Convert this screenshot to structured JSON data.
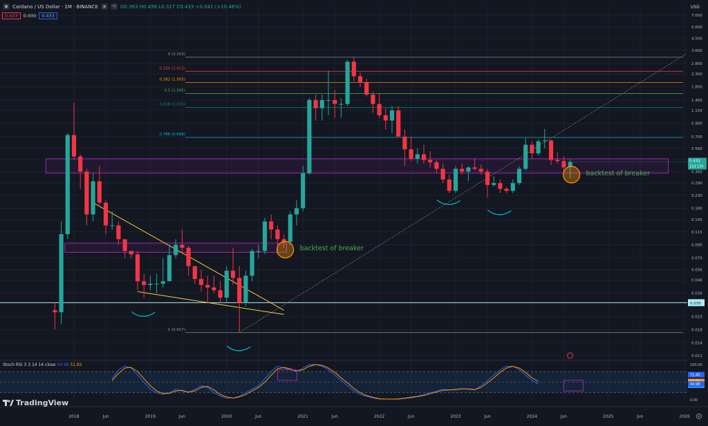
{
  "header": {
    "symbol": "Cardano / US Dollar · 1M · BINANCE",
    "ohlc": "O0.393 H0.456 L0.317 C0.433 +0.041 (+10.46%)",
    "sell": "0.433",
    "spread": "0.000",
    "buy": "0.433"
  },
  "branding": {
    "logo_text": "TradingView"
  },
  "price_axis": {
    "unit": "USD",
    "ticks": [
      "7.000",
      "5.600",
      "4.500",
      "3.600",
      "2.800",
      "2.300",
      "1.800",
      "1.400",
      "1.150",
      "0.900",
      "0.700",
      "0.560",
      "0.450",
      "0.360",
      "0.290",
      "0.230",
      "0.180",
      "0.145",
      "0.115",
      "0.090",
      "0.070",
      "0.056",
      "0.046",
      "0.036",
      "0.030",
      "0.023",
      "0.018",
      "0.014",
      "0.011"
    ],
    "current_price": "0.433",
    "countdown": "11d 13h",
    "level_label": "0.030"
  },
  "time_axis": {
    "ticks": [
      "2018",
      "Jun",
      "2019",
      "Jun",
      "2020",
      "Jun",
      "2021",
      "Jun",
      "2022",
      "Jun",
      "2023",
      "Jun",
      "2024",
      "Jun",
      "2025",
      "Jun",
      "2026"
    ]
  },
  "annotations": {
    "backtest_left": "backtest of breaker",
    "backtest_right": "backtest of breaker"
  },
  "fib_levels": [
    {
      "label": "0 (3.153)",
      "color": "#9598a1"
    },
    {
      "label": "0.236 (2.413)",
      "color": "#f23645"
    },
    {
      "label": "0.382 (1.955)",
      "color": "#ff9800"
    },
    {
      "label": "0.5 (1.585)",
      "color": "#4caf50"
    },
    {
      "label": "0.618 (1.215)",
      "color": "#089981"
    },
    {
      "label": "0.786 (0.688)",
      "color": "#00bcd4"
    },
    {
      "label": "1 (0.017)",
      "color": "#9598a1"
    }
  ],
  "rsi": {
    "title": "Stoch RSI 3 3 14 14 close",
    "k_value": "44.98",
    "d_value": "51.82",
    "axis_ticks": [
      "100.00",
      "71.40",
      "51.82",
      "41.17",
      "44.98",
      "0.00"
    ]
  },
  "colors": {
    "up": "#26a69a",
    "down": "#f23645",
    "zone": "#9c27b0",
    "trend": "#f7d03c",
    "k_line": "#2962ff",
    "d_line": "#ff9800"
  },
  "chart_data": {
    "type": "candlestick",
    "timeframe": "1M",
    "y_scale": "log",
    "ylim": [
      0.011,
      7.0
    ],
    "candles": [
      {
        "t": "2017-10",
        "o": 0.026,
        "h": 0.03,
        "l": 0.018,
        "c": 0.025
      },
      {
        "t": "2017-11",
        "o": 0.025,
        "h": 0.14,
        "l": 0.02,
        "c": 0.11
      },
      {
        "t": "2017-12",
        "o": 0.11,
        "h": 0.75,
        "l": 0.1,
        "c": 0.72
      },
      {
        "t": "2018-01",
        "o": 0.72,
        "h": 1.33,
        "l": 0.45,
        "c": 0.48
      },
      {
        "t": "2018-02",
        "o": 0.48,
        "h": 0.5,
        "l": 0.26,
        "c": 0.36
      },
      {
        "t": "2018-03",
        "o": 0.36,
        "h": 0.38,
        "l": 0.13,
        "c": 0.16
      },
      {
        "t": "2018-04",
        "o": 0.16,
        "h": 0.35,
        "l": 0.14,
        "c": 0.3
      },
      {
        "t": "2018-05",
        "o": 0.3,
        "h": 0.4,
        "l": 0.19,
        "c": 0.2
      },
      {
        "t": "2018-06",
        "o": 0.2,
        "h": 0.21,
        "l": 0.11,
        "c": 0.13
      },
      {
        "t": "2018-07",
        "o": 0.13,
        "h": 0.17,
        "l": 0.12,
        "c": 0.13
      },
      {
        "t": "2018-08",
        "o": 0.13,
        "h": 0.14,
        "l": 0.09,
        "c": 0.1
      },
      {
        "t": "2018-09",
        "o": 0.1,
        "h": 0.1,
        "l": 0.07,
        "c": 0.08
      },
      {
        "t": "2018-10",
        "o": 0.08,
        "h": 0.08,
        "l": 0.07,
        "c": 0.075
      },
      {
        "t": "2018-11",
        "o": 0.075,
        "h": 0.08,
        "l": 0.038,
        "c": 0.045
      },
      {
        "t": "2018-12",
        "o": 0.045,
        "h": 0.052,
        "l": 0.033,
        "c": 0.042
      },
      {
        "t": "2019-01",
        "o": 0.042,
        "h": 0.05,
        "l": 0.038,
        "c": 0.043
      },
      {
        "t": "2019-02",
        "o": 0.043,
        "h": 0.052,
        "l": 0.036,
        "c": 0.043
      },
      {
        "t": "2019-03",
        "o": 0.043,
        "h": 0.07,
        "l": 0.04,
        "c": 0.045
      },
      {
        "t": "2019-04",
        "o": 0.045,
        "h": 0.09,
        "l": 0.056,
        "c": 0.074
      },
      {
        "t": "2019-05",
        "o": 0.074,
        "h": 0.1,
        "l": 0.07,
        "c": 0.09
      },
      {
        "t": "2019-06",
        "o": 0.09,
        "h": 0.12,
        "l": 0.075,
        "c": 0.085
      },
      {
        "t": "2019-07",
        "o": 0.085,
        "h": 0.088,
        "l": 0.05,
        "c": 0.06
      },
      {
        "t": "2019-08",
        "o": 0.06,
        "h": 0.06,
        "l": 0.043,
        "c": 0.047
      },
      {
        "t": "2019-09",
        "o": 0.047,
        "h": 0.056,
        "l": 0.037,
        "c": 0.042
      },
      {
        "t": "2019-10",
        "o": 0.042,
        "h": 0.05,
        "l": 0.03,
        "c": 0.04
      },
      {
        "t": "2019-11",
        "o": 0.04,
        "h": 0.05,
        "l": 0.036,
        "c": 0.038
      },
      {
        "t": "2019-12",
        "o": 0.038,
        "h": 0.045,
        "l": 0.03,
        "c": 0.033
      },
      {
        "t": "2020-01",
        "o": 0.033,
        "h": 0.06,
        "l": 0.03,
        "c": 0.055
      },
      {
        "t": "2020-02",
        "o": 0.055,
        "h": 0.085,
        "l": 0.042,
        "c": 0.048
      },
      {
        "t": "2020-03",
        "o": 0.048,
        "h": 0.06,
        "l": 0.017,
        "c": 0.03
      },
      {
        "t": "2020-04",
        "o": 0.03,
        "h": 0.055,
        "l": 0.028,
        "c": 0.05
      },
      {
        "t": "2020-05",
        "o": 0.05,
        "h": 0.083,
        "l": 0.045,
        "c": 0.08
      },
      {
        "t": "2020-06",
        "o": 0.08,
        "h": 0.09,
        "l": 0.07,
        "c": 0.08
      },
      {
        "t": "2020-07",
        "o": 0.08,
        "h": 0.15,
        "l": 0.075,
        "c": 0.14
      },
      {
        "t": "2020-08",
        "o": 0.14,
        "h": 0.16,
        "l": 0.1,
        "c": 0.12
      },
      {
        "t": "2020-09",
        "o": 0.12,
        "h": 0.13,
        "l": 0.075,
        "c": 0.1
      },
      {
        "t": "2020-10",
        "o": 0.1,
        "h": 0.11,
        "l": 0.085,
        "c": 0.095
      },
      {
        "t": "2020-11",
        "o": 0.095,
        "h": 0.17,
        "l": 0.09,
        "c": 0.16
      },
      {
        "t": "2020-12",
        "o": 0.16,
        "h": 0.21,
        "l": 0.13,
        "c": 0.18
      },
      {
        "t": "2021-01",
        "o": 0.18,
        "h": 0.4,
        "l": 0.17,
        "c": 0.35
      },
      {
        "t": "2021-02",
        "o": 0.35,
        "h": 1.45,
        "l": 0.34,
        "c": 1.4
      },
      {
        "t": "2021-03",
        "o": 1.4,
        "h": 1.55,
        "l": 0.95,
        "c": 1.2
      },
      {
        "t": "2021-04",
        "o": 1.2,
        "h": 1.55,
        "l": 0.95,
        "c": 1.4
      },
      {
        "t": "2021-05",
        "o": 1.4,
        "h": 2.45,
        "l": 1.05,
        "c": 1.4
      },
      {
        "t": "2021-06",
        "o": 1.4,
        "h": 1.7,
        "l": 1.0,
        "c": 1.3
      },
      {
        "t": "2021-07",
        "o": 1.3,
        "h": 1.45,
        "l": 1.0,
        "c": 1.3
      },
      {
        "t": "2021-08",
        "o": 1.3,
        "h": 3.0,
        "l": 1.25,
        "c": 2.9
      },
      {
        "t": "2021-09",
        "o": 2.9,
        "h": 3.15,
        "l": 2.0,
        "c": 2.2
      },
      {
        "t": "2021-10",
        "o": 2.2,
        "h": 2.35,
        "l": 1.8,
        "c": 1.95
      },
      {
        "t": "2021-11",
        "o": 1.95,
        "h": 2.1,
        "l": 1.5,
        "c": 1.55
      },
      {
        "t": "2021-12",
        "o": 1.55,
        "h": 1.65,
        "l": 1.1,
        "c": 1.3
      },
      {
        "t": "2022-01",
        "o": 1.3,
        "h": 1.6,
        "l": 1.0,
        "c": 1.05
      },
      {
        "t": "2022-02",
        "o": 1.05,
        "h": 1.2,
        "l": 0.8,
        "c": 0.95
      },
      {
        "t": "2022-03",
        "o": 0.95,
        "h": 1.25,
        "l": 0.75,
        "c": 1.15
      },
      {
        "t": "2022-04",
        "o": 1.15,
        "h": 1.25,
        "l": 0.7,
        "c": 0.7
      },
      {
        "t": "2022-05",
        "o": 0.7,
        "h": 0.8,
        "l": 0.4,
        "c": 0.55
      },
      {
        "t": "2022-06",
        "o": 0.55,
        "h": 0.7,
        "l": 0.44,
        "c": 0.46
      },
      {
        "t": "2022-07",
        "o": 0.46,
        "h": 0.56,
        "l": 0.42,
        "c": 0.5
      },
      {
        "t": "2022-08",
        "o": 0.5,
        "h": 0.6,
        "l": 0.42,
        "c": 0.45
      },
      {
        "t": "2022-09",
        "o": 0.45,
        "h": 0.53,
        "l": 0.39,
        "c": 0.43
      },
      {
        "t": "2022-10",
        "o": 0.43,
        "h": 0.45,
        "l": 0.35,
        "c": 0.38
      },
      {
        "t": "2022-11",
        "o": 0.38,
        "h": 0.42,
        "l": 0.29,
        "c": 0.31
      },
      {
        "t": "2022-12",
        "o": 0.31,
        "h": 0.34,
        "l": 0.24,
        "c": 0.25
      },
      {
        "t": "2023-01",
        "o": 0.25,
        "h": 0.4,
        "l": 0.24,
        "c": 0.38
      },
      {
        "t": "2023-02",
        "o": 0.38,
        "h": 0.42,
        "l": 0.34,
        "c": 0.36
      },
      {
        "t": "2023-03",
        "o": 0.36,
        "h": 0.4,
        "l": 0.3,
        "c": 0.39
      },
      {
        "t": "2023-04",
        "o": 0.39,
        "h": 0.46,
        "l": 0.37,
        "c": 0.38
      },
      {
        "t": "2023-05",
        "o": 0.38,
        "h": 0.41,
        "l": 0.34,
        "c": 0.36
      },
      {
        "t": "2023-06",
        "o": 0.36,
        "h": 0.38,
        "l": 0.22,
        "c": 0.28
      },
      {
        "t": "2023-07",
        "o": 0.28,
        "h": 0.33,
        "l": 0.27,
        "c": 0.29
      },
      {
        "t": "2023-08",
        "o": 0.29,
        "h": 0.31,
        "l": 0.24,
        "c": 0.26
      },
      {
        "t": "2023-09",
        "o": 0.26,
        "h": 0.27,
        "l": 0.24,
        "c": 0.25
      },
      {
        "t": "2023-10",
        "o": 0.25,
        "h": 0.31,
        "l": 0.24,
        "c": 0.29
      },
      {
        "t": "2023-11",
        "o": 0.29,
        "h": 0.4,
        "l": 0.28,
        "c": 0.38
      },
      {
        "t": "2023-12",
        "o": 0.38,
        "h": 0.68,
        "l": 0.37,
        "c": 0.6
      },
      {
        "t": "2024-01",
        "o": 0.6,
        "h": 0.64,
        "l": 0.46,
        "c": 0.51
      },
      {
        "t": "2024-02",
        "o": 0.51,
        "h": 0.66,
        "l": 0.49,
        "c": 0.64
      },
      {
        "t": "2024-03",
        "o": 0.64,
        "h": 0.81,
        "l": 0.56,
        "c": 0.65
      },
      {
        "t": "2024-04",
        "o": 0.65,
        "h": 0.66,
        "l": 0.41,
        "c": 0.45
      },
      {
        "t": "2024-05",
        "o": 0.45,
        "h": 0.52,
        "l": 0.42,
        "c": 0.44
      },
      {
        "t": "2024-06",
        "o": 0.44,
        "h": 0.48,
        "l": 0.36,
        "c": 0.39
      },
      {
        "t": "2024-07",
        "o": 0.393,
        "h": 0.456,
        "l": 0.317,
        "c": 0.433
      }
    ],
    "breaker_zones": [
      {
        "from": "2017-12",
        "to": "2020-10",
        "low": 0.078,
        "high": 0.093
      },
      {
        "from": "2017-09",
        "to": "2025-10",
        "low": 0.35,
        "high": 0.46
      }
    ],
    "horizontal_levels": [
      0.03
    ],
    "fibonacci": [
      {
        "ratio": 0,
        "price": 3.153
      },
      {
        "ratio": 0.236,
        "price": 2.413
      },
      {
        "ratio": 0.382,
        "price": 1.955
      },
      {
        "ratio": 0.5,
        "price": 1.585
      },
      {
        "ratio": 0.618,
        "price": 1.215
      },
      {
        "ratio": 0.786,
        "price": 0.688
      },
      {
        "ratio": 1,
        "price": 0.017
      }
    ],
    "stoch_rsi": {
      "k": [
        60,
        85,
        95,
        90,
        70,
        50,
        30,
        20,
        15,
        20,
        30,
        25,
        20,
        30,
        40,
        35,
        20,
        10,
        5,
        5,
        10,
        20,
        30,
        40,
        60,
        80,
        95,
        90,
        85,
        80,
        90,
        100,
        100,
        95,
        85,
        70,
        55,
        40,
        25,
        15,
        10,
        5,
        2,
        2,
        2,
        3,
        5,
        8,
        10,
        15,
        20,
        25,
        30,
        28,
        30,
        32,
        30,
        28,
        40,
        55,
        70,
        85,
        95,
        95,
        85,
        70,
        55,
        45
      ],
      "d": [
        55,
        75,
        90,
        92,
        80,
        60,
        40,
        25,
        18,
        18,
        25,
        27,
        22,
        25,
        35,
        38,
        28,
        15,
        8,
        5,
        8,
        15,
        25,
        35,
        50,
        70,
        88,
        92,
        88,
        82,
        85,
        95,
        100,
        98,
        90,
        78,
        62,
        48,
        32,
        20,
        12,
        7,
        3,
        2,
        2,
        2,
        4,
        6,
        9,
        12,
        17,
        22,
        27,
        28,
        29,
        31,
        31,
        29,
        35,
        48,
        62,
        78,
        90,
        95,
        90,
        78,
        62,
        52
      ],
      "upper_band": 80,
      "lower_band": 20
    }
  }
}
